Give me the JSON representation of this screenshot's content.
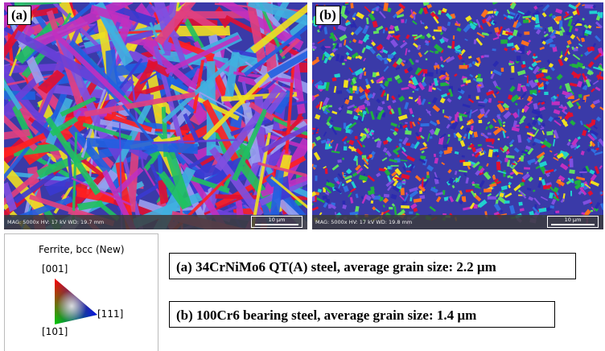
{
  "panels": [
    {
      "label": "(a)",
      "info": "MAG: 5000x   HV: 17 kV   WD: 19.7 mm",
      "scale_bar": "10 µm"
    },
    {
      "label": "(b)",
      "info": "MAG: 5000x   HV: 17 kV   WD: 19.8 mm",
      "scale_bar": "10 µm"
    }
  ],
  "legend": {
    "title": "Ferrite, bcc (New)",
    "top": "[001]",
    "right": "[111]",
    "bottom_left": "[101]"
  },
  "captions": [
    "(a) 34CrNiMo6 QT(A) steel, average grain size: 2.2 µm",
    "(b) 100Cr6 bearing steel, average grain size: 1.4 µm"
  ]
}
